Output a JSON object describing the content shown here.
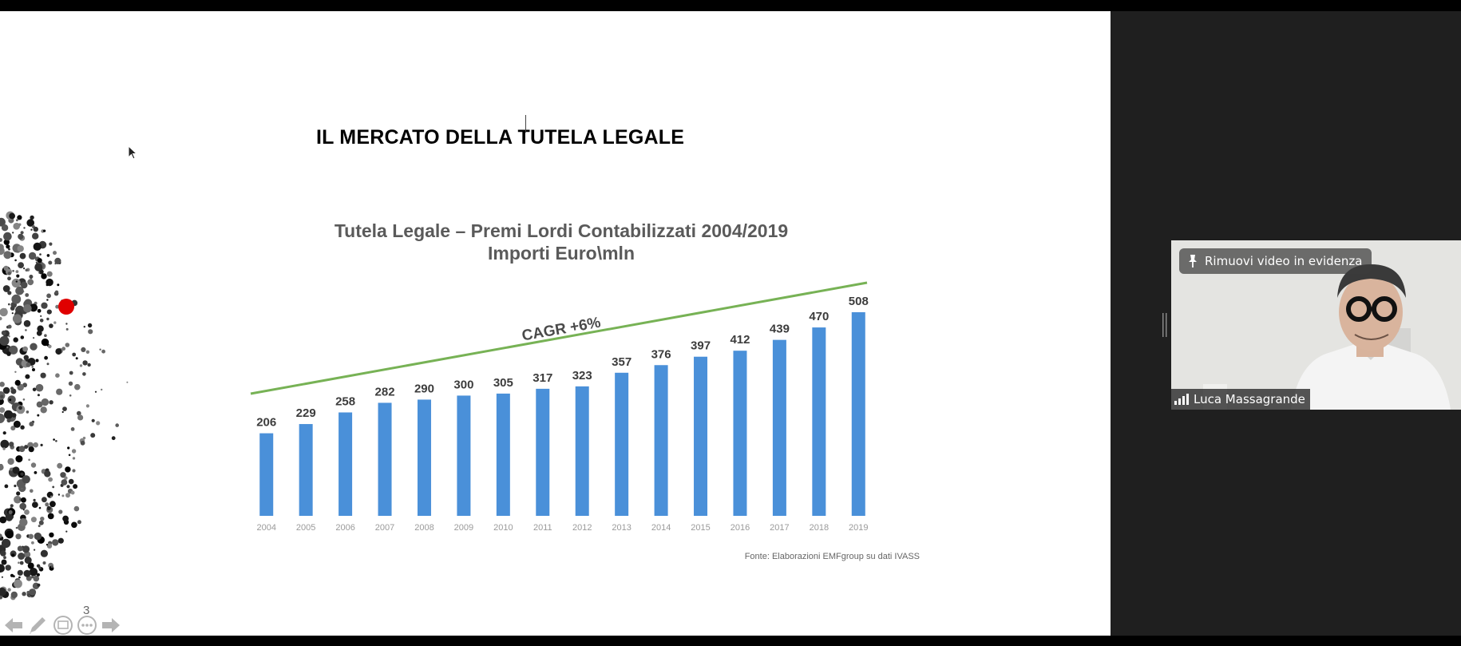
{
  "slide": {
    "title": "IL MERCATO DELLA TUTELA LEGALE",
    "page_number": "3"
  },
  "chart_data": {
    "type": "bar",
    "title": "Tutela Legale – Premi Lordi Contabilizzati 2004/2019",
    "subtitle": "Importi Euro\\mln",
    "categories": [
      "2004",
      "2005",
      "2006",
      "2007",
      "2008",
      "2009",
      "2010",
      "2011",
      "2012",
      "2013",
      "2014",
      "2015",
      "2016",
      "2017",
      "2018",
      "2019"
    ],
    "values": [
      206,
      229,
      258,
      282,
      290,
      300,
      305,
      317,
      323,
      357,
      376,
      397,
      412,
      439,
      470,
      508
    ],
    "annotation": "CAGR +6%",
    "source": "Fonte: Elaborazioni EMFgroup su dati IVASS",
    "bar_color": "#4a90d9",
    "trend_color": "#77b255",
    "grid": false
  },
  "video": {
    "unpin_label": "Rimuovi video in evidenza",
    "participant_name": "Luca Massagrande"
  },
  "colors": {
    "background": "#1f1f1f",
    "slide_background": "#ffffff",
    "highlight_dot": "#e00000"
  }
}
